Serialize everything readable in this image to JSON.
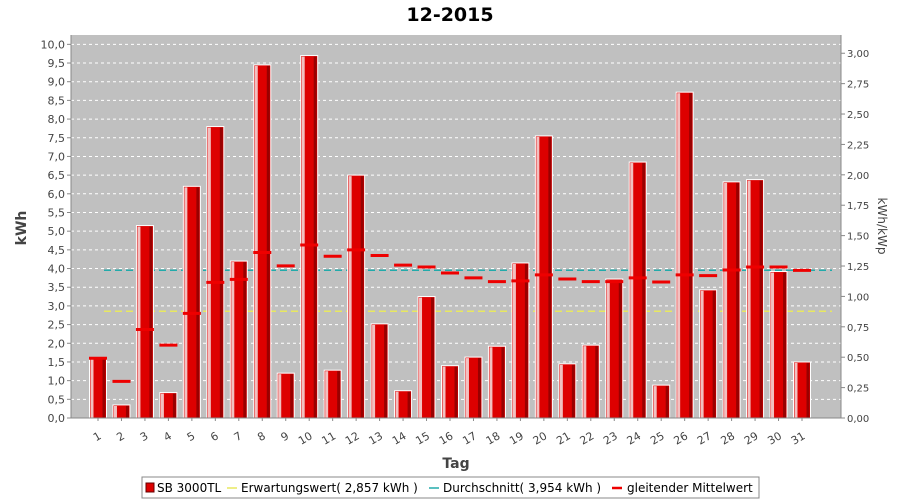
{
  "chart_data": {
    "type": "bar",
    "title": "12-2015",
    "xlabel": "Tag",
    "ylabel": "kWh",
    "y2label": "kWh/kWp",
    "ylim": [
      0,
      10.25
    ],
    "y2lim": [
      0,
      3.15
    ],
    "yticks": [
      "0,0",
      "0,5",
      "1,0",
      "1,5",
      "2,0",
      "2,5",
      "3,0",
      "3,5",
      "4,0",
      "4,5",
      "5,0",
      "5,5",
      "6,0",
      "6,5",
      "7,0",
      "7,5",
      "8,0",
      "8,5",
      "9,0",
      "9,5",
      "10,0"
    ],
    "y2ticks": [
      "0,00",
      "0,25",
      "0,50",
      "0,75",
      "1,00",
      "1,25",
      "1,50",
      "1,75",
      "2,00",
      "2,25",
      "2,50",
      "2,75",
      "3,00"
    ],
    "categories": [
      "1",
      "2",
      "3",
      "4",
      "5",
      "6",
      "7",
      "8",
      "9",
      "10",
      "11",
      "12",
      "13",
      "14",
      "15",
      "16",
      "17",
      "18",
      "19",
      "20",
      "21",
      "22",
      "23",
      "24",
      "25",
      "26",
      "27",
      "28",
      "29",
      "30",
      "31"
    ],
    "series": [
      {
        "name": "SB 3000TL",
        "type": "bar",
        "color": "#dd0000",
        "values": [
          1.6,
          0.35,
          5.15,
          0.68,
          6.2,
          7.8,
          4.2,
          9.45,
          1.2,
          9.7,
          1.28,
          6.5,
          2.52,
          0.73,
          3.25,
          1.4,
          1.63,
          1.92,
          4.15,
          7.55,
          1.45,
          1.95,
          3.72,
          6.85,
          0.88,
          8.72,
          3.43,
          6.32,
          6.38,
          3.92,
          1.5
        ]
      },
      {
        "name": "Erwartungswert( 2,857 kWh )",
        "type": "line",
        "color": "#e8e860",
        "value": 2.857
      },
      {
        "name": "Durchschnitt( 3,954 kWh )",
        "type": "line",
        "color": "#22aaaa",
        "value": 3.954
      },
      {
        "name": "gleitender Mittelwert",
        "type": "marker",
        "color": "#ee0000",
        "values": [
          1.6,
          0.98,
          2.37,
          1.95,
          2.8,
          3.63,
          3.71,
          4.43,
          4.07,
          4.63,
          4.33,
          4.5,
          4.35,
          4.09,
          4.04,
          3.88,
          3.75,
          3.65,
          3.67,
          3.83,
          3.72,
          3.65,
          3.65,
          3.75,
          3.64,
          3.83,
          3.81,
          3.96,
          4.04,
          4.04,
          3.95
        ]
      }
    ],
    "grid": true,
    "legend_position": "bottom"
  }
}
